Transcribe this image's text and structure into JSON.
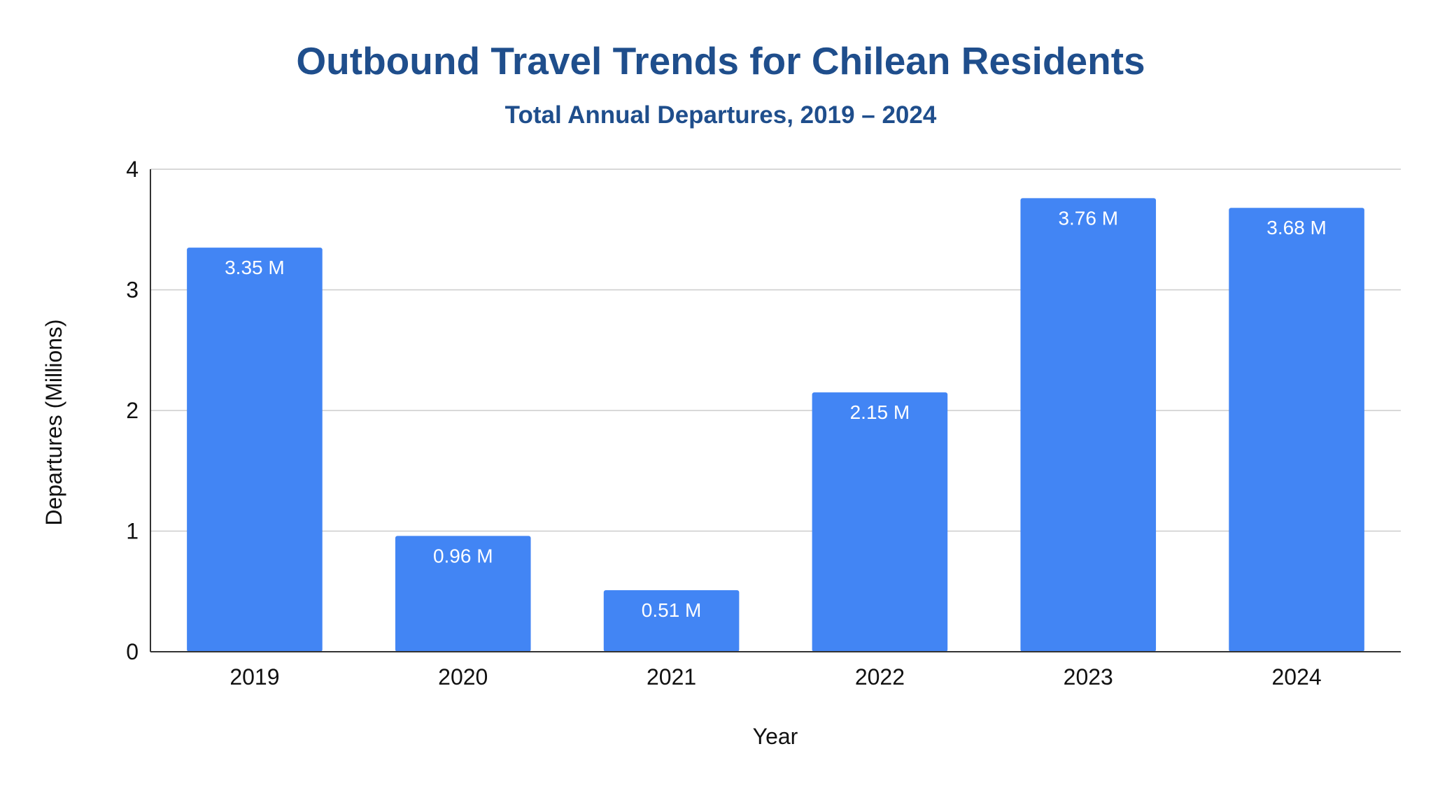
{
  "chart_data": {
    "type": "bar",
    "title": "Outbound Travel Trends for Chilean Residents",
    "subtitle": "Total Annual Departures, 2019 – 2024",
    "xlabel": "Year",
    "ylabel": "Departures (Millions)",
    "categories": [
      "2019",
      "2020",
      "2021",
      "2022",
      "2023",
      "2024"
    ],
    "values": [
      3.35,
      0.96,
      0.51,
      2.15,
      3.76,
      3.68
    ],
    "data_labels": [
      "3.35 M",
      "0.96 M",
      "0.51 M",
      "2.15 M",
      "3.76 M",
      "3.68 M"
    ],
    "ylim": [
      0,
      4
    ],
    "yticks": [
      "0",
      "1",
      "2",
      "3",
      "4"
    ],
    "grid": true,
    "legend": "none",
    "colors": {
      "bar": "#4285f4",
      "title": "#1f4e8c",
      "gridline": "#cccccc",
      "axis": "#333333"
    }
  }
}
